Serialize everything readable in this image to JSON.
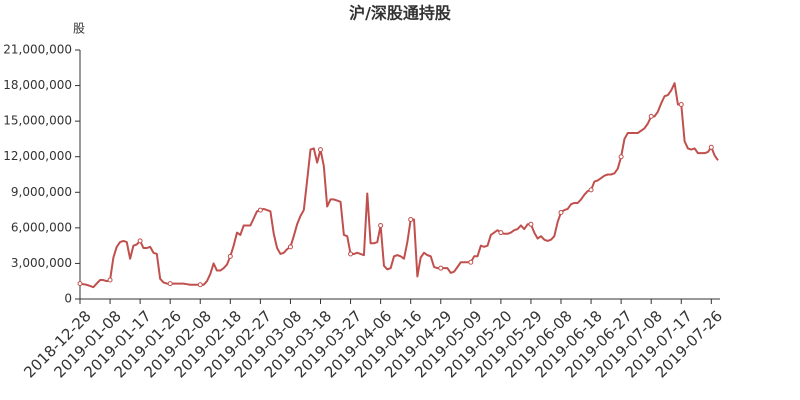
{
  "chart_data": {
    "type": "line",
    "title": "沪/深股通持股",
    "y_label": "股",
    "categories": [
      "2018-12-28",
      null,
      null,
      null,
      null,
      null,
      null,
      null,
      null,
      "2019-01-08",
      null,
      null,
      null,
      null,
      null,
      null,
      null,
      null,
      "2019-01-17",
      null,
      null,
      null,
      null,
      null,
      null,
      null,
      null,
      "2019-01-26",
      null,
      null,
      null,
      null,
      null,
      null,
      null,
      null,
      "2019-02-08",
      null,
      null,
      null,
      null,
      null,
      null,
      null,
      null,
      "2019-02-18",
      null,
      null,
      null,
      null,
      null,
      null,
      null,
      null,
      "2019-02-27",
      null,
      null,
      null,
      null,
      null,
      null,
      null,
      null,
      "2019-03-08",
      null,
      null,
      null,
      null,
      null,
      null,
      null,
      null,
      "2019-03-18",
      null,
      null,
      null,
      null,
      null,
      null,
      null,
      null,
      "2019-03-27",
      null,
      null,
      null,
      null,
      null,
      null,
      null,
      null,
      "2019-04-06",
      null,
      null,
      null,
      null,
      null,
      null,
      null,
      null,
      "2019-04-16",
      null,
      null,
      null,
      null,
      null,
      null,
      null,
      null,
      "2019-04-29",
      null,
      null,
      null,
      null,
      null,
      null,
      null,
      null,
      "2019-05-09",
      null,
      null,
      null,
      null,
      null,
      null,
      null,
      null,
      "2019-05-20",
      null,
      null,
      null,
      null,
      null,
      null,
      null,
      null,
      "2019-05-29",
      null,
      null,
      null,
      null,
      null,
      null,
      null,
      null,
      "2019-06-08",
      null,
      null,
      null,
      null,
      null,
      null,
      null,
      null,
      "2019-06-18",
      null,
      null,
      null,
      null,
      null,
      null,
      null,
      null,
      "2019-06-27",
      null,
      null,
      null,
      null,
      null,
      null,
      null,
      null,
      "2019-07-08",
      null,
      null,
      null,
      null,
      null,
      null,
      null,
      null,
      "2019-07-17",
      null,
      null,
      null,
      null,
      null,
      null,
      null,
      null,
      "2019-07-26",
      null,
      null
    ],
    "series": [
      {
        "color": "#c0504d",
        "values": [
          1300000,
          1250000,
          1200000,
          1100000,
          1000000,
          1300000,
          1600000,
          1600000,
          1500000,
          1600000,
          3500000,
          4400000,
          4800000,
          4900000,
          4800000,
          3400000,
          4500000,
          4600000,
          4900000,
          4300000,
          4300000,
          4400000,
          3900000,
          3800000,
          1700000,
          1400000,
          1300000,
          1300000,
          1300000,
          1300000,
          1300000,
          1300000,
          1250000,
          1200000,
          1200000,
          1200000,
          1200000,
          1200000,
          1500000,
          2100000,
          3000000,
          2400000,
          2400000,
          2600000,
          2900000,
          3600000,
          4500000,
          5600000,
          5400000,
          6200000,
          6200000,
          6200000,
          6800000,
          7400000,
          7500000,
          7600000,
          7500000,
          7400000,
          5500000,
          4300000,
          3800000,
          3900000,
          4200000,
          4400000,
          5300000,
          6300000,
          7000000,
          7500000,
          10000000,
          12600000,
          12700000,
          11500000,
          12600000,
          11200000,
          7800000,
          8400000,
          8400000,
          8300000,
          8200000,
          5400000,
          5300000,
          3800000,
          3800000,
          3900000,
          3800000,
          3700000,
          8900000,
          4700000,
          4700000,
          4800000,
          6200000,
          2800000,
          2500000,
          2600000,
          3600000,
          3700000,
          3600000,
          3400000,
          4800000,
          6700000,
          6700000,
          1900000,
          3500000,
          3900000,
          3700000,
          3600000,
          2700000,
          2600000,
          2600000,
          2600000,
          2600000,
          2200000,
          2300000,
          2700000,
          3100000,
          3100000,
          3100000,
          3100000,
          3600000,
          3600000,
          4500000,
          4400000,
          4500000,
          5400000,
          5600000,
          5800000,
          5600000,
          5500000,
          5500000,
          5600000,
          5800000,
          5900000,
          6200000,
          5900000,
          6300000,
          6300000,
          5600000,
          5100000,
          5300000,
          5000000,
          4900000,
          5000000,
          5300000,
          6500000,
          7300000,
          7500000,
          7600000,
          8000000,
          8100000,
          8100000,
          8400000,
          8800000,
          9100000,
          9200000,
          9900000,
          10000000,
          10200000,
          10400000,
          10500000,
          10500000,
          10600000,
          11000000,
          12000000,
          13500000,
          14000000,
          14000000,
          14000000,
          14000000,
          14200000,
          14400000,
          14800000,
          15400000,
          15400000,
          15800000,
          16500000,
          17100000,
          17200000,
          17600000,
          18200000,
          16400000,
          16400000,
          13300000,
          12700000,
          12600000,
          12700000,
          12300000,
          12300000,
          12300000,
          12400000,
          12800000,
          12100000,
          11700000
        ]
      }
    ],
    "ylim": [
      0,
      21000000
    ],
    "yticks": [
      0,
      {
        "value": 3000000,
        "label": "3,000,000"
      },
      {
        "value": 6000000,
        "label": "6,000,000"
      },
      {
        "value": 9000000,
        "label": "9,000,000"
      },
      {
        "value": 12000000,
        "label": "12,000,000"
      },
      {
        "value": 15000000,
        "label": "15,000,000"
      },
      {
        "value": 18000000,
        "label": "18,000,000"
      },
      {
        "value": 21000000,
        "label": "21,000,000"
      }
    ],
    "grid": false
  }
}
